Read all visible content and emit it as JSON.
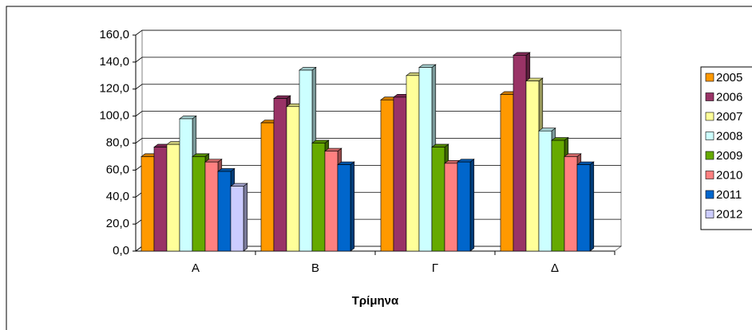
{
  "chart_data": {
    "type": "bar3d",
    "x_label": "Τρίμηνα",
    "categories": [
      "Α",
      "Β",
      "Γ",
      "Δ"
    ],
    "series": [
      {
        "name": "2005",
        "color": "#ff9900",
        "values": [
          70,
          95,
          112,
          116
        ]
      },
      {
        "name": "2006",
        "color": "#993366",
        "values": [
          77,
          113,
          114,
          145
        ]
      },
      {
        "name": "2007",
        "color": "#ffff99",
        "values": [
          79,
          107,
          130,
          126
        ]
      },
      {
        "name": "2008",
        "color": "#ccffff",
        "values": [
          98,
          134,
          136,
          89
        ]
      },
      {
        "name": "2009",
        "color": "#66aa00",
        "values": [
          70,
          80,
          77,
          82
        ]
      },
      {
        "name": "2010",
        "color": "#ff8080",
        "values": [
          66,
          74,
          65,
          70
        ]
      },
      {
        "name": "2011",
        "color": "#0066cc",
        "values": [
          59,
          64,
          66,
          64
        ]
      },
      {
        "name": "2012",
        "color": "#ccccff",
        "values": [
          48,
          null,
          null,
          null
        ]
      }
    ],
    "ylim": [
      0,
      160
    ],
    "yticks": [
      {
        "value": 0,
        "label": "0,0"
      },
      {
        "value": 20,
        "label": "20,0"
      },
      {
        "value": 40,
        "label": "40,0"
      },
      {
        "value": 60,
        "label": "60,0"
      },
      {
        "value": 80,
        "label": "80,0"
      },
      {
        "value": 100,
        "label": "100,0"
      },
      {
        "value": 120,
        "label": "120,0"
      },
      {
        "value": 140,
        "label": "140,0"
      },
      {
        "value": 160,
        "label": "160,0"
      }
    ],
    "grid": true
  }
}
